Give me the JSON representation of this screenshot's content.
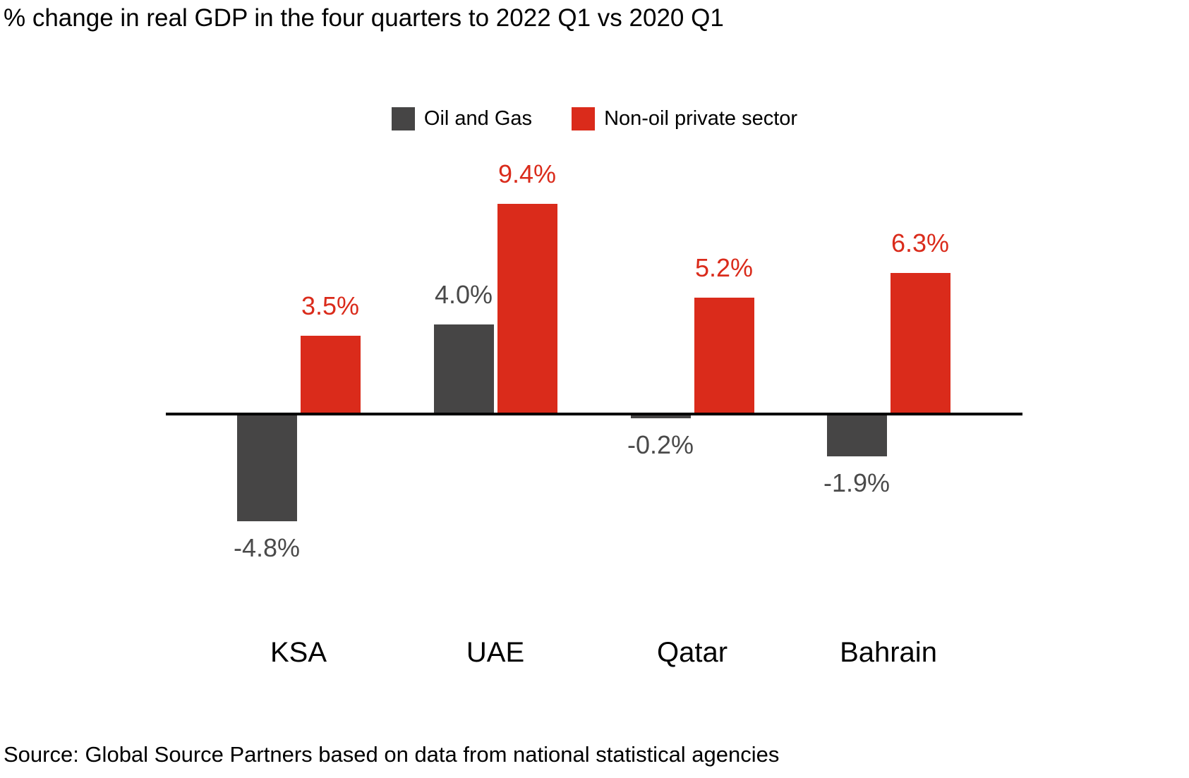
{
  "title": "% change in real GDP in the four quarters to 2022 Q1 vs 2020 Q1",
  "source_note": "Source: Global Source Partners based on data from national statistical agencies",
  "colors": {
    "oil_and_gas": "#464545",
    "non_oil_private_sector": "#DA2B1B",
    "gray_value_label": "#4A4A4A",
    "axis": "#000000",
    "background": "#FFFFFF"
  },
  "legend": {
    "items": [
      {
        "label": "Oil and Gas",
        "color": "#464545"
      },
      {
        "label": "Non-oil private sector",
        "color": "#DA2B1B"
      }
    ]
  },
  "chart_data": {
    "type": "bar",
    "title": "% change in real GDP in the four quarters to 2022 Q1 vs 2020 Q1",
    "categories": [
      "KSA",
      "UAE",
      "Qatar",
      "Bahrain"
    ],
    "series": [
      {
        "name": "Oil and Gas",
        "color": "#464545",
        "label_color": "#4A4A4A",
        "values": [
          -4.8,
          4.0,
          -0.2,
          -1.9
        ],
        "data_labels": [
          "-4.8%",
          "4.0%",
          "-0.2%",
          "-1.9%"
        ]
      },
      {
        "name": "Non-oil private sector",
        "color": "#DA2B1B",
        "label_color": "#DA2B1B",
        "values": [
          3.5,
          9.4,
          5.2,
          6.3
        ],
        "data_labels": [
          "3.5%",
          "9.4%",
          "5.2%",
          "6.3%"
        ]
      }
    ],
    "xlabel": "",
    "ylabel": "",
    "units": "%",
    "baseline": 0,
    "grid": false,
    "y_axis_visible": false,
    "x_axis_line": true,
    "data_labels_shown": true,
    "legend_position": "top-center",
    "source": "Source: Global Source Partners based on data from national statistical agencies"
  }
}
